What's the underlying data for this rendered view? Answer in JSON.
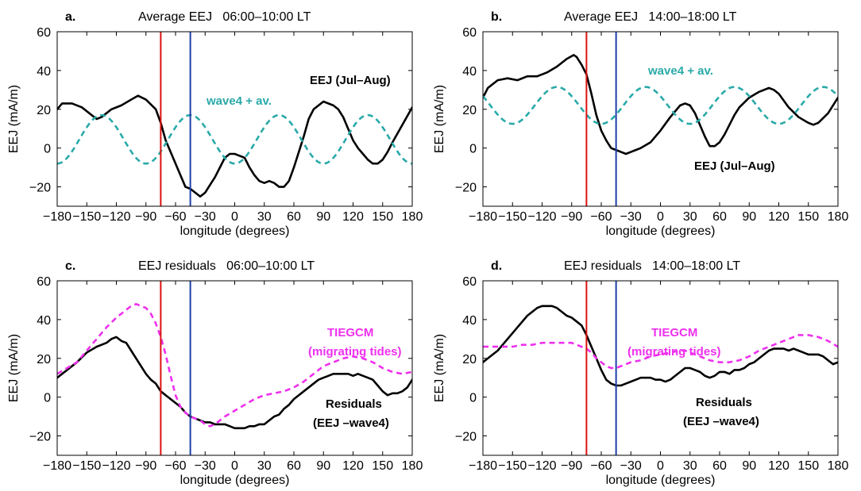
{
  "chart_data": [
    {
      "panel_label": "a.",
      "title": "Average EEJ   06:00–10:00 LT",
      "type": "line",
      "xlabel": "longitude (degrees)",
      "ylabel": "EEJ (mA/m)",
      "xlim": [
        -180,
        180
      ],
      "ylim": [
        -30,
        60
      ],
      "xticks": [
        "−180",
        "−150",
        "−120",
        "−90",
        "−60",
        "−30",
        "0",
        "30",
        "60",
        "90",
        "120",
        "150",
        "180"
      ],
      "yticks": [
        "−20",
        "0",
        "20",
        "40",
        "60"
      ],
      "vlines": [
        {
          "x": -75,
          "color": "#dd1111"
        },
        {
          "x": -45,
          "color": "#1f3fa8"
        }
      ],
      "series": [
        {
          "name": "EEJ (Jul–Aug)",
          "color": "#000000",
          "dash": "solid",
          "x": [
            -180,
            -175,
            -165,
            -155,
            -145,
            -140,
            -135,
            -125,
            -115,
            -105,
            -98,
            -90,
            -80,
            -75,
            -70,
            -60,
            -50,
            -45,
            -40,
            -35,
            -30,
            -25,
            -20,
            -15,
            -10,
            -5,
            0,
            5,
            10,
            15,
            20,
            25,
            30,
            35,
            40,
            45,
            50,
            55,
            60,
            65,
            70,
            75,
            80,
            90,
            100,
            105,
            110,
            115,
            120,
            125,
            130,
            135,
            140,
            145,
            150,
            155,
            160,
            170,
            180
          ],
          "y": [
            20,
            23,
            23,
            21,
            17,
            15,
            16,
            20,
            22,
            25,
            27,
            25,
            20,
            13,
            4,
            -8,
            -20,
            -21,
            -23,
            -25,
            -23,
            -19,
            -15,
            -10,
            -5,
            -3,
            -3,
            -4,
            -5,
            -10,
            -14,
            -17,
            -18,
            -17,
            -18,
            -20,
            -20,
            -17,
            -10,
            -2,
            6,
            15,
            20,
            24,
            22,
            20,
            16,
            10,
            4,
            0,
            -3,
            -6,
            -8,
            -8,
            -6,
            -2,
            3,
            12,
            21
          ]
        },
        {
          "name": "wave4 + av.",
          "color": "#2aa9a9",
          "dash": "dashed",
          "func": {
            "mean": 4.5,
            "amp": 12.5,
            "k": 4,
            "phase_deg": 180
          }
        }
      ],
      "annotations": [
        {
          "text": "EEJ (Jul–Aug)",
          "color": "#000000"
        },
        {
          "text": "wave4 + av.",
          "color": "#2aa9a9"
        }
      ]
    },
    {
      "panel_label": "b.",
      "title": "Average EEJ   14:00–18:00 LT",
      "type": "line",
      "xlabel": "longitude (degrees)",
      "ylabel": "EEJ (mA/m)",
      "xlim": [
        -180,
        180
      ],
      "ylim": [
        -30,
        60
      ],
      "xticks": [
        "−180",
        "−150",
        "−120",
        "−90",
        "−60",
        "−30",
        "0",
        "30",
        "60",
        "90",
        "120",
        "150",
        "180"
      ],
      "yticks": [
        "−20",
        "0",
        "20",
        "40",
        "60"
      ],
      "vlines": [
        {
          "x": -75,
          "color": "#dd1111"
        },
        {
          "x": -45,
          "color": "#1f3fa8"
        }
      ],
      "series": [
        {
          "name": "EEJ (Jul–Aug)",
          "color": "#000000",
          "dash": "solid",
          "x": [
            -180,
            -175,
            -165,
            -155,
            -145,
            -135,
            -125,
            -115,
            -105,
            -95,
            -88,
            -85,
            -80,
            -75,
            -70,
            -65,
            -60,
            -55,
            -50,
            -45,
            -40,
            -35,
            -30,
            -25,
            -20,
            -10,
            0,
            10,
            20,
            25,
            30,
            35,
            40,
            45,
            50,
            55,
            60,
            65,
            70,
            75,
            80,
            90,
            100,
            110,
            115,
            120,
            130,
            140,
            150,
            155,
            160,
            170,
            180
          ],
          "y": [
            26,
            31,
            35,
            36,
            35,
            37,
            37,
            39,
            42,
            46,
            48,
            47,
            43,
            38,
            28,
            17,
            9,
            4,
            0,
            -1,
            -2,
            -3,
            -2,
            -1,
            0,
            3,
            9,
            16,
            22,
            23,
            22,
            18,
            12,
            6,
            1,
            1,
            3,
            7,
            12,
            17,
            21,
            26,
            29,
            31,
            30,
            28,
            21,
            16,
            13,
            12,
            13,
            18,
            26
          ]
        },
        {
          "name": "wave4 + av.",
          "color": "#2aa9a9",
          "dash": "dashed",
          "func": {
            "mean": 22,
            "amp": 9.5,
            "k": 4,
            "phase_deg": 300
          }
        }
      ],
      "annotations": [
        {
          "text": "wave4 + av.",
          "color": "#2aa9a9"
        },
        {
          "text": "EEJ (Jul–Aug)",
          "color": "#000000"
        }
      ]
    },
    {
      "panel_label": "c.",
      "title": "EEJ residuals   06:00–10:00 LT",
      "type": "line",
      "xlabel": "longitude (degrees)",
      "ylabel": "EEJ (mA/m)",
      "xlim": [
        -180,
        180
      ],
      "ylim": [
        -30,
        60
      ],
      "xticks": [
        "−180",
        "−150",
        "−120",
        "−90",
        "−60",
        "−30",
        "0",
        "30",
        "60",
        "90",
        "120",
        "150",
        "180"
      ],
      "yticks": [
        "−20",
        "0",
        "20",
        "40",
        "60"
      ],
      "vlines": [
        {
          "x": -75,
          "color": "#dd1111"
        },
        {
          "x": -45,
          "color": "#1f3fa8"
        }
      ],
      "series": [
        {
          "name": "Residuals (EEJ –wave4)",
          "color": "#000000",
          "dash": "solid",
          "x": [
            -180,
            -170,
            -160,
            -150,
            -140,
            -130,
            -125,
            -120,
            -115,
            -110,
            -105,
            -100,
            -95,
            -90,
            -85,
            -80,
            -75,
            -70,
            -65,
            -60,
            -55,
            -50,
            -45,
            -40,
            -35,
            -30,
            -25,
            -20,
            -15,
            -10,
            -5,
            0,
            5,
            10,
            15,
            20,
            25,
            30,
            35,
            40,
            45,
            50,
            55,
            60,
            65,
            70,
            75,
            80,
            85,
            90,
            95,
            100,
            105,
            110,
            115,
            120,
            125,
            130,
            135,
            140,
            145,
            150,
            155,
            160,
            165,
            170,
            175,
            180
          ],
          "y": [
            10,
            14,
            18,
            23,
            26,
            28,
            30,
            31,
            29,
            28,
            24,
            20,
            16,
            12,
            9,
            7,
            3,
            1,
            -1,
            -3,
            -5,
            -8,
            -10,
            -11,
            -12,
            -13,
            -13,
            -14,
            -14,
            -14,
            -15,
            -16,
            -16,
            -16,
            -15,
            -15,
            -14,
            -14,
            -12,
            -10,
            -9,
            -6,
            -4,
            -1,
            1,
            3,
            5,
            7,
            9,
            10,
            11,
            12,
            12,
            12,
            12,
            11,
            12,
            11,
            10,
            9,
            6,
            3,
            1,
            2,
            2,
            3,
            5,
            9
          ]
        },
        {
          "name": "TIEGCM (migrating tides)",
          "color": "#ee30ee",
          "dash": "dashed",
          "x": [
            -180,
            -170,
            -160,
            -150,
            -140,
            -130,
            -120,
            -110,
            -105,
            -100,
            -95,
            -90,
            -85,
            -80,
            -75,
            -70,
            -65,
            -60,
            -55,
            -50,
            -45,
            -40,
            -35,
            -30,
            -25,
            -20,
            -10,
            0,
            10,
            20,
            30,
            40,
            50,
            60,
            70,
            80,
            90,
            100,
            110,
            120,
            130,
            140,
            150,
            160,
            170,
            180
          ],
          "y": [
            12,
            15,
            18,
            24,
            30,
            36,
            41,
            45,
            47,
            48,
            47,
            46,
            43,
            38,
            31,
            22,
            11,
            1,
            -5,
            -8,
            -10,
            -11,
            -12,
            -14,
            -15,
            -14,
            -10,
            -7,
            -4,
            -1,
            1,
            2,
            3,
            5,
            8,
            12,
            16,
            18,
            20,
            21,
            20,
            18,
            15,
            13,
            12,
            13
          ]
        }
      ],
      "annotations": [
        {
          "text": "TIEGCM",
          "color": "#ee30ee"
        },
        {
          "text": "(migrating tides)",
          "color": "#ee30ee"
        },
        {
          "text": "Residuals",
          "color": "#000000"
        },
        {
          "text": "(EEJ –wave4)",
          "color": "#000000"
        }
      ]
    },
    {
      "panel_label": "d.",
      "title": "EEJ residuals   14:00–18:00 LT",
      "type": "line",
      "xlabel": "longitude (degrees)",
      "ylabel": "EEJ (mA/m)",
      "xlim": [
        -180,
        180
      ],
      "ylim": [
        -30,
        60
      ],
      "xticks": [
        "−180",
        "−150",
        "−120",
        "−90",
        "−60",
        "−30",
        "0",
        "30",
        "60",
        "90",
        "120",
        "150",
        "180"
      ],
      "yticks": [
        "−20",
        "0",
        "20",
        "40",
        "60"
      ],
      "vlines": [
        {
          "x": -75,
          "color": "#dd1111"
        },
        {
          "x": -45,
          "color": "#1f3fa8"
        }
      ],
      "series": [
        {
          "name": "Residuals (EEJ –wave4)",
          "color": "#000000",
          "dash": "solid",
          "x": [
            -180,
            -175,
            -165,
            -155,
            -145,
            -135,
            -125,
            -120,
            -115,
            -110,
            -105,
            -100,
            -95,
            -90,
            -85,
            -80,
            -75,
            -70,
            -65,
            -60,
            -55,
            -50,
            -45,
            -40,
            -35,
            -30,
            -25,
            -20,
            -15,
            -10,
            -5,
            0,
            5,
            10,
            15,
            20,
            25,
            30,
            35,
            40,
            45,
            50,
            55,
            60,
            65,
            70,
            75,
            80,
            85,
            90,
            95,
            100,
            105,
            110,
            115,
            120,
            125,
            130,
            135,
            140,
            145,
            150,
            155,
            160,
            165,
            170,
            175,
            180
          ],
          "y": [
            18,
            20,
            24,
            30,
            36,
            42,
            46,
            47,
            47,
            47,
            46,
            44,
            42,
            41,
            39,
            37,
            32,
            26,
            20,
            14,
            9,
            7,
            6,
            6,
            7,
            8,
            9,
            10,
            10,
            10,
            9,
            9,
            8,
            9,
            11,
            13,
            15,
            15,
            14,
            13,
            11,
            10,
            11,
            13,
            13,
            12,
            14,
            14,
            15,
            17,
            18,
            20,
            22,
            24,
            25,
            25,
            25,
            24,
            25,
            24,
            23,
            22,
            22,
            22,
            21,
            19,
            17,
            18
          ]
        },
        {
          "name": "TIEGCM (migrating tides)",
          "color": "#ee30ee",
          "dash": "dashed",
          "x": [
            -180,
            -170,
            -160,
            -150,
            -140,
            -130,
            -120,
            -110,
            -100,
            -95,
            -90,
            -85,
            -80,
            -75,
            -70,
            -65,
            -60,
            -55,
            -50,
            -45,
            -40,
            -35,
            -30,
            -20,
            -10,
            0,
            10,
            20,
            25,
            30,
            40,
            50,
            60,
            70,
            80,
            90,
            100,
            110,
            120,
            130,
            140,
            145,
            150,
            160,
            170,
            180
          ],
          "y": [
            26,
            26,
            26,
            26,
            27,
            27,
            28,
            28,
            28,
            28,
            28,
            27,
            26,
            25,
            23,
            20,
            18,
            16,
            15,
            15,
            16,
            17,
            18,
            19,
            21,
            22,
            23,
            24,
            24,
            23,
            21,
            19,
            18,
            18,
            19,
            21,
            24,
            26,
            28,
            30,
            32,
            32,
            32,
            31,
            29,
            26
          ]
        }
      ],
      "annotations": [
        {
          "text": "TIEGCM",
          "color": "#ee30ee"
        },
        {
          "text": "(migrating tides)",
          "color": "#ee30ee"
        },
        {
          "text": "Residuals",
          "color": "#000000"
        },
        {
          "text": "(EEJ –wave4)",
          "color": "#000000"
        }
      ]
    }
  ]
}
